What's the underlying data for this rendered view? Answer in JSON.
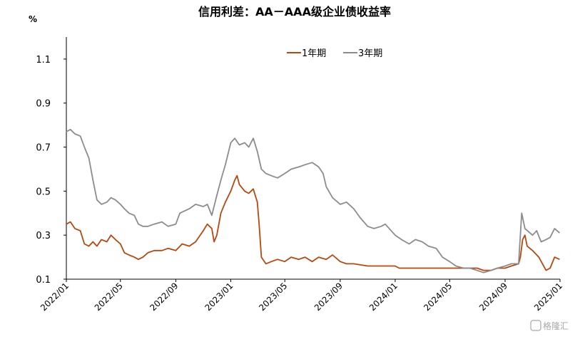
{
  "chart_data": {
    "type": "line",
    "title": "信用利差：AA－AAA级企业债收益率",
    "unit": "%",
    "ylim": [
      0.1,
      1.2
    ],
    "yticks": [
      "0.1",
      "0.3",
      "0.5",
      "0.7",
      "0.9",
      "1.1"
    ],
    "xlim": [
      "2022-01-01",
      "2025-01-01"
    ],
    "xticks": [
      "2022/01",
      "2022/05",
      "2022/09",
      "2023/01",
      "2023/05",
      "2023/09",
      "2024/01",
      "2024/05",
      "2024/09",
      "2025/01"
    ],
    "legend_position": "top-center",
    "grid": false,
    "series": [
      {
        "name": "1年期",
        "color": "#b8470f",
        "points": [
          [
            "2022-01-01",
            0.35
          ],
          [
            "2022-01-10",
            0.36
          ],
          [
            "2022-01-20",
            0.33
          ],
          [
            "2022-02-01",
            0.32
          ],
          [
            "2022-02-10",
            0.26
          ],
          [
            "2022-02-20",
            0.25
          ],
          [
            "2022-03-01",
            0.27
          ],
          [
            "2022-03-10",
            0.25
          ],
          [
            "2022-03-20",
            0.28
          ],
          [
            "2022-04-01",
            0.27
          ],
          [
            "2022-04-10",
            0.3
          ],
          [
            "2022-04-20",
            0.28
          ],
          [
            "2022-05-01",
            0.26
          ],
          [
            "2022-05-10",
            0.22
          ],
          [
            "2022-05-20",
            0.21
          ],
          [
            "2022-06-01",
            0.2
          ],
          [
            "2022-06-10",
            0.19
          ],
          [
            "2022-06-20",
            0.2
          ],
          [
            "2022-07-01",
            0.22
          ],
          [
            "2022-07-15",
            0.23
          ],
          [
            "2022-08-01",
            0.23
          ],
          [
            "2022-08-15",
            0.24
          ],
          [
            "2022-09-01",
            0.23
          ],
          [
            "2022-09-15",
            0.26
          ],
          [
            "2022-10-01",
            0.25
          ],
          [
            "2022-10-15",
            0.27
          ],
          [
            "2022-11-01",
            0.32
          ],
          [
            "2022-11-10",
            0.35
          ],
          [
            "2022-11-20",
            0.33
          ],
          [
            "2022-11-25",
            0.27
          ],
          [
            "2022-12-01",
            0.3
          ],
          [
            "2022-12-10",
            0.4
          ],
          [
            "2022-12-20",
            0.45
          ],
          [
            "2023-01-01",
            0.5
          ],
          [
            "2023-01-10",
            0.55
          ],
          [
            "2023-01-15",
            0.57
          ],
          [
            "2023-01-20",
            0.53
          ],
          [
            "2023-02-01",
            0.5
          ],
          [
            "2023-02-10",
            0.49
          ],
          [
            "2023-02-20",
            0.51
          ],
          [
            "2023-03-01",
            0.45
          ],
          [
            "2023-03-05",
            0.35
          ],
          [
            "2023-03-10",
            0.2
          ],
          [
            "2023-03-20",
            0.17
          ],
          [
            "2023-04-01",
            0.18
          ],
          [
            "2023-04-15",
            0.19
          ],
          [
            "2023-05-01",
            0.18
          ],
          [
            "2023-05-15",
            0.2
          ],
          [
            "2023-06-01",
            0.19
          ],
          [
            "2023-06-15",
            0.2
          ],
          [
            "2023-07-01",
            0.18
          ],
          [
            "2023-07-15",
            0.2
          ],
          [
            "2023-08-01",
            0.19
          ],
          [
            "2023-08-15",
            0.21
          ],
          [
            "2023-09-01",
            0.18
          ],
          [
            "2023-09-15",
            0.17
          ],
          [
            "2023-10-01",
            0.17
          ],
          [
            "2023-11-01",
            0.16
          ],
          [
            "2023-12-01",
            0.16
          ],
          [
            "2024-01-01",
            0.16
          ],
          [
            "2024-01-10",
            0.15
          ],
          [
            "2024-02-01",
            0.15
          ],
          [
            "2024-03-01",
            0.15
          ],
          [
            "2024-04-01",
            0.15
          ],
          [
            "2024-05-01",
            0.15
          ],
          [
            "2024-06-01",
            0.15
          ],
          [
            "2024-07-01",
            0.15
          ],
          [
            "2024-07-15",
            0.14
          ],
          [
            "2024-08-01",
            0.14
          ],
          [
            "2024-08-15",
            0.15
          ],
          [
            "2024-09-01",
            0.15
          ],
          [
            "2024-09-15",
            0.16
          ],
          [
            "2024-10-01",
            0.17
          ],
          [
            "2024-10-05",
            0.2
          ],
          [
            "2024-10-10",
            0.28
          ],
          [
            "2024-10-15",
            0.3
          ],
          [
            "2024-10-20",
            0.25
          ],
          [
            "2024-11-01",
            0.23
          ],
          [
            "2024-11-15",
            0.2
          ],
          [
            "2024-12-01",
            0.14
          ],
          [
            "2024-12-10",
            0.15
          ],
          [
            "2024-12-20",
            0.2
          ],
          [
            "2024-12-31",
            0.19
          ]
        ]
      },
      {
        "name": "3年期",
        "color": "#8c8c8c",
        "points": [
          [
            "2022-01-01",
            0.77
          ],
          [
            "2022-01-10",
            0.78
          ],
          [
            "2022-01-20",
            0.76
          ],
          [
            "2022-02-01",
            0.75
          ],
          [
            "2022-02-10",
            0.7
          ],
          [
            "2022-02-20",
            0.65
          ],
          [
            "2022-03-01",
            0.55
          ],
          [
            "2022-03-10",
            0.46
          ],
          [
            "2022-03-20",
            0.44
          ],
          [
            "2022-04-01",
            0.45
          ],
          [
            "2022-04-10",
            0.47
          ],
          [
            "2022-04-20",
            0.46
          ],
          [
            "2022-05-01",
            0.44
          ],
          [
            "2022-05-10",
            0.42
          ],
          [
            "2022-05-20",
            0.4
          ],
          [
            "2022-06-01",
            0.39
          ],
          [
            "2022-06-10",
            0.35
          ],
          [
            "2022-06-20",
            0.34
          ],
          [
            "2022-07-01",
            0.34
          ],
          [
            "2022-07-15",
            0.35
          ],
          [
            "2022-08-01",
            0.36
          ],
          [
            "2022-08-15",
            0.34
          ],
          [
            "2022-09-01",
            0.35
          ],
          [
            "2022-09-10",
            0.4
          ],
          [
            "2022-10-01",
            0.42
          ],
          [
            "2022-10-15",
            0.44
          ],
          [
            "2022-11-01",
            0.43
          ],
          [
            "2022-11-10",
            0.44
          ],
          [
            "2022-11-20",
            0.39
          ],
          [
            "2022-12-01",
            0.48
          ],
          [
            "2022-12-10",
            0.55
          ],
          [
            "2022-12-20",
            0.62
          ],
          [
            "2023-01-01",
            0.72
          ],
          [
            "2023-01-10",
            0.74
          ],
          [
            "2023-01-20",
            0.71
          ],
          [
            "2023-02-01",
            0.72
          ],
          [
            "2023-02-10",
            0.7
          ],
          [
            "2023-02-20",
            0.74
          ],
          [
            "2023-03-01",
            0.68
          ],
          [
            "2023-03-10",
            0.6
          ],
          [
            "2023-03-20",
            0.58
          ],
          [
            "2023-04-01",
            0.57
          ],
          [
            "2023-04-15",
            0.56
          ],
          [
            "2023-05-01",
            0.58
          ],
          [
            "2023-05-15",
            0.6
          ],
          [
            "2023-06-01",
            0.61
          ],
          [
            "2023-06-15",
            0.62
          ],
          [
            "2023-07-01",
            0.63
          ],
          [
            "2023-07-15",
            0.61
          ],
          [
            "2023-07-25",
            0.58
          ],
          [
            "2023-08-01",
            0.52
          ],
          [
            "2023-08-15",
            0.47
          ],
          [
            "2023-09-01",
            0.44
          ],
          [
            "2023-09-15",
            0.45
          ],
          [
            "2023-10-01",
            0.42
          ],
          [
            "2023-10-15",
            0.38
          ],
          [
            "2023-11-01",
            0.34
          ],
          [
            "2023-11-15",
            0.33
          ],
          [
            "2023-12-01",
            0.34
          ],
          [
            "2023-12-10",
            0.35
          ],
          [
            "2024-01-01",
            0.3
          ],
          [
            "2024-01-15",
            0.28
          ],
          [
            "2024-02-01",
            0.26
          ],
          [
            "2024-02-15",
            0.28
          ],
          [
            "2024-03-01",
            0.27
          ],
          [
            "2024-03-15",
            0.25
          ],
          [
            "2024-04-01",
            0.24
          ],
          [
            "2024-04-15",
            0.2
          ],
          [
            "2024-05-01",
            0.18
          ],
          [
            "2024-05-15",
            0.16
          ],
          [
            "2024-06-01",
            0.15
          ],
          [
            "2024-06-15",
            0.15
          ],
          [
            "2024-07-01",
            0.14
          ],
          [
            "2024-07-15",
            0.13
          ],
          [
            "2024-08-01",
            0.14
          ],
          [
            "2024-08-15",
            0.15
          ],
          [
            "2024-09-01",
            0.16
          ],
          [
            "2024-09-15",
            0.17
          ],
          [
            "2024-10-01",
            0.17
          ],
          [
            "2024-10-05",
            0.3
          ],
          [
            "2024-10-08",
            0.4
          ],
          [
            "2024-10-15",
            0.33
          ],
          [
            "2024-11-01",
            0.3
          ],
          [
            "2024-11-10",
            0.32
          ],
          [
            "2024-11-20",
            0.27
          ],
          [
            "2024-12-01",
            0.28
          ],
          [
            "2024-12-10",
            0.29
          ],
          [
            "2024-12-20",
            0.33
          ],
          [
            "2024-12-31",
            0.31
          ]
        ]
      }
    ]
  },
  "watermark": "格隆汇"
}
